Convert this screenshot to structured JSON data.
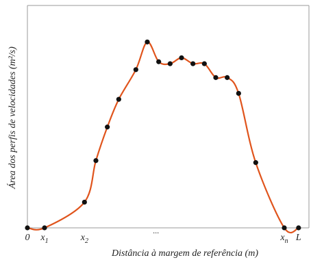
{
  "chart_data": {
    "type": "line",
    "ylabel": "Área dos perfis de velocidades (m²/s)",
    "xlabel": "Distância à margem de referência (m)",
    "x_ticks": [
      {
        "main": "0",
        "sub": "",
        "x": 0
      },
      {
        "main": "x",
        "sub": "1",
        "x": 6
      },
      {
        "main": "x",
        "sub": "2",
        "x": 20
      },
      {
        "main": "···",
        "sub": "",
        "x": 45
      },
      {
        "main": "x",
        "sub": "n",
        "x": 90
      },
      {
        "main": "L",
        "sub": "",
        "x": 95
      }
    ],
    "xlim": [
      0,
      96
    ],
    "ylim": [
      0,
      100
    ],
    "grid": false,
    "line_color": "#e0541c",
    "marker_color": "#111111",
    "points": [
      {
        "x": 0,
        "y": 0
      },
      {
        "x": 6,
        "y": 0
      },
      {
        "x": 20,
        "y": 13
      },
      {
        "x": 24,
        "y": 34
      },
      {
        "x": 28,
        "y": 51
      },
      {
        "x": 32,
        "y": 65
      },
      {
        "x": 38,
        "y": 80
      },
      {
        "x": 42,
        "y": 94
      },
      {
        "x": 46,
        "y": 84
      },
      {
        "x": 50,
        "y": 83
      },
      {
        "x": 54,
        "y": 86
      },
      {
        "x": 58,
        "y": 83
      },
      {
        "x": 62,
        "y": 83
      },
      {
        "x": 66,
        "y": 76
      },
      {
        "x": 70,
        "y": 76
      },
      {
        "x": 74,
        "y": 68
      },
      {
        "x": 80,
        "y": 33
      },
      {
        "x": 90,
        "y": 0
      },
      {
        "x": 95,
        "y": 0
      }
    ]
  }
}
